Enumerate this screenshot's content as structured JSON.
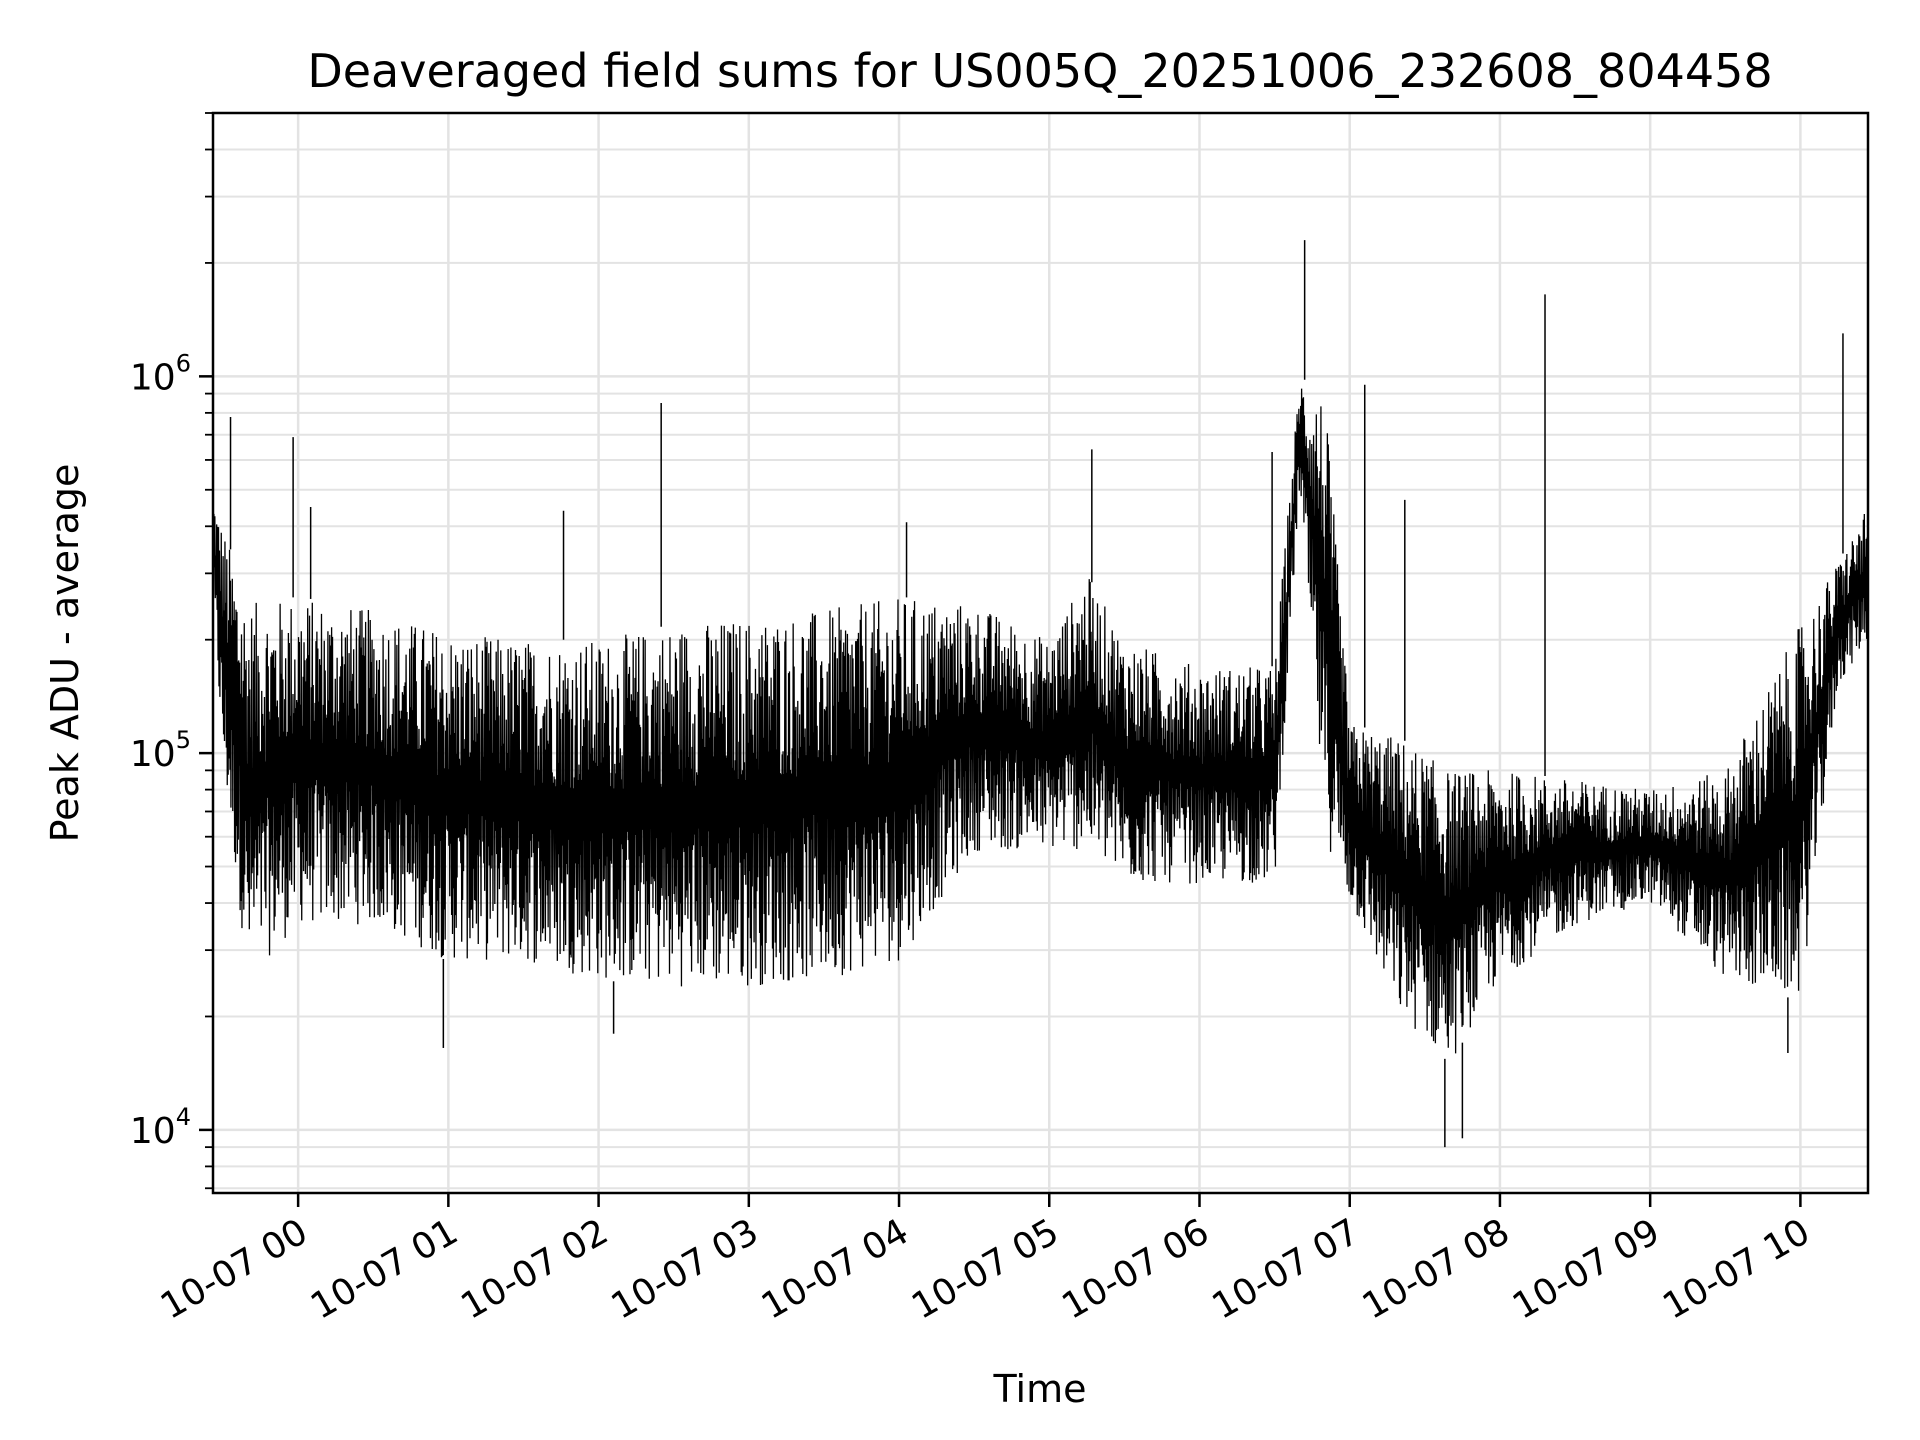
{
  "chart_data": {
    "type": "line",
    "title": "Deaveraged field sums for US005Q_20251006_232608_804458",
    "xlabel": "Time",
    "ylabel": "Peak ADU - average",
    "yscale": "log",
    "ylim": [
      6800,
      5000000
    ],
    "xlim": [
      "2025-10-06 23:26",
      "2025-10-07 10:27"
    ],
    "grid": true,
    "line_color": "#000000",
    "x_tick_labels": [
      "10-07 00",
      "10-07 01",
      "10-07 02",
      "10-07 03",
      "10-07 04",
      "10-07 05",
      "10-07 06",
      "10-07 07",
      "10-07 08",
      "10-07 09",
      "10-07 10"
    ],
    "y_tick_labels": [
      {
        "base": "10",
        "exp": "4",
        "value": 10000
      },
      {
        "base": "10",
        "exp": "5",
        "value": 100000
      },
      {
        "base": "10",
        "exp": "6",
        "value": 1000000
      }
    ],
    "series": [
      {
        "envelope_x": [
          "2025-10-06 23:26",
          "2025-10-06 23:30",
          "2025-10-06 23:40",
          "2025-10-07 00:00",
          "2025-10-07 00:30",
          "2025-10-07 01:00",
          "2025-10-07 01:30",
          "2025-10-07 02:00",
          "2025-10-07 02:30",
          "2025-10-07 03:00",
          "2025-10-07 03:30",
          "2025-10-07 04:00",
          "2025-10-07 04:30",
          "2025-10-07 05:00",
          "2025-10-07 05:15",
          "2025-10-07 05:30",
          "2025-10-07 06:00",
          "2025-10-07 06:30",
          "2025-10-07 06:40",
          "2025-10-07 06:50",
          "2025-10-07 07:00",
          "2025-10-07 07:20",
          "2025-10-07 07:40",
          "2025-10-07 08:00",
          "2025-10-07 08:30",
          "2025-10-07 09:00",
          "2025-10-07 09:30",
          "2025-10-07 10:00",
          "2025-10-07 10:15",
          "2025-10-07 10:27"
        ],
        "high": [
          500000,
          400000,
          250000,
          260000,
          240000,
          210000,
          200000,
          200000,
          220000,
          230000,
          240000,
          260000,
          250000,
          200000,
          300000,
          200000,
          170000,
          170000,
          1000000,
          900000,
          120000,
          110000,
          90000,
          90000,
          85000,
          80000,
          90000,
          220000,
          320000,
          450000
        ],
        "low": [
          250000,
          90000,
          25000,
          35000,
          35000,
          28000,
          28000,
          25000,
          24000,
          24000,
          25000,
          28000,
          55000,
          55000,
          55000,
          45000,
          45000,
          45000,
          500000,
          60000,
          40000,
          20000,
          15000,
          25000,
          35000,
          40000,
          25000,
          22000,
          150000,
          200000
        ],
        "spikes": [
          {
            "x": "2025-10-06 23:33",
            "y": 780000
          },
          {
            "x": "2025-10-06 23:58",
            "y": 690000
          },
          {
            "x": "2025-10-07 00:05",
            "y": 450000
          },
          {
            "x": "2025-10-07 01:46",
            "y": 440000
          },
          {
            "x": "2025-10-07 02:25",
            "y": 850000
          },
          {
            "x": "2025-10-07 04:03",
            "y": 410000
          },
          {
            "x": "2025-10-07 05:17",
            "y": 640000
          },
          {
            "x": "2025-10-07 06:29",
            "y": 630000
          },
          {
            "x": "2025-10-07 06:42",
            "y": 2300000
          },
          {
            "x": "2025-10-07 07:06",
            "y": 950000
          },
          {
            "x": "2025-10-07 07:22",
            "y": 470000
          },
          {
            "x": "2025-10-07 08:18",
            "y": 1650000
          },
          {
            "x": "2025-10-07 10:17",
            "y": 1300000
          }
        ],
        "dips": [
          {
            "x": "2025-10-07 00:58",
            "y": 16500
          },
          {
            "x": "2025-10-07 02:06",
            "y": 18000
          },
          {
            "x": "2025-10-07 07:38",
            "y": 9000
          },
          {
            "x": "2025-10-07 07:45",
            "y": 9500
          },
          {
            "x": "2025-10-07 09:55",
            "y": 16000
          }
        ]
      }
    ]
  }
}
